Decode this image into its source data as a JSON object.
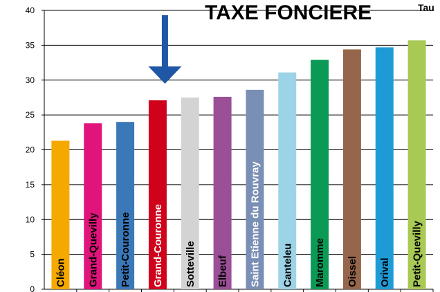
{
  "chart_data": {
    "type": "bar",
    "title": "TAXE FONCIERE",
    "subtitle": "Tau",
    "categories": [
      "Cléon",
      "Grand-Quevilly",
      "Petit-Couronne",
      "Grand-Couronne",
      "Sotteville",
      "Elbeuf",
      "Saint Etienne du Rouvray",
      "Canteleu",
      "Maromme",
      "Oissel",
      "Orival",
      "Petit-Quevilly"
    ],
    "values": [
      21.3,
      23.8,
      24.0,
      27.1,
      27.5,
      27.6,
      28.6,
      31.1,
      32.9,
      34.4,
      34.7,
      35.7
    ],
    "colors": [
      "#f5a800",
      "#e0147a",
      "#3a78b8",
      "#d0021b",
      "#d3d3d3",
      "#9b4f96",
      "#7a8fb5",
      "#9dd3e6",
      "#0a9a55",
      "#95664b",
      "#1e9bd7",
      "#a9c955"
    ],
    "label_colors": [
      "#000000",
      "#000000",
      "#000000",
      "#ffffff",
      "#000000",
      "#000000",
      "#ffffff",
      "#000000",
      "#000000",
      "#000000",
      "#000000",
      "#000000"
    ],
    "ylim": [
      0,
      40
    ],
    "yticks": [
      "0",
      "5",
      "10",
      "15",
      "20",
      "25",
      "30",
      "35",
      "40"
    ],
    "grid": true,
    "annotation": {
      "type": "arrow",
      "target_category": "Grand-Couronne",
      "color": "#1f57a6"
    }
  }
}
